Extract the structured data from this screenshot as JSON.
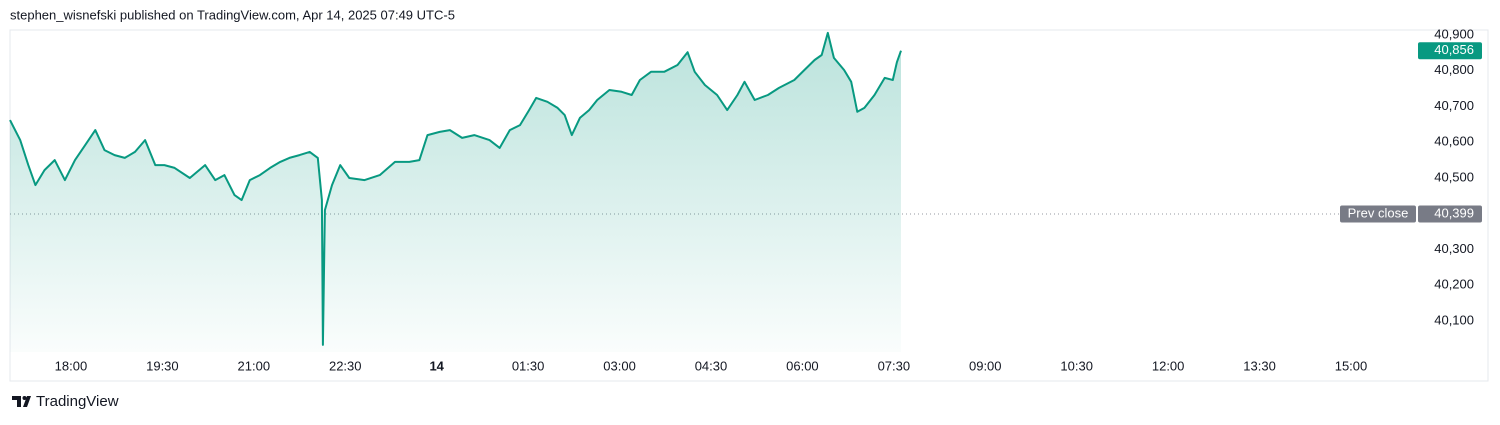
{
  "header": {
    "title": "stephen_wisnefski published on TradingView.com, Apr 14, 2025 07:49 UTC-5"
  },
  "chart_data": {
    "type": "area",
    "color": "#089981",
    "x": [
      "17:00",
      "17:10",
      "17:18",
      "17:25",
      "17:34",
      "17:44",
      "17:54",
      "18:04",
      "18:14",
      "18:24",
      "18:33",
      "18:43",
      "18:53",
      "19:03",
      "19:13",
      "19:23",
      "19:32",
      "19:42",
      "19:57",
      "20:12",
      "20:22",
      "20:31",
      "20:41",
      "20:48",
      "20:56",
      "21:06",
      "21:16",
      "21:26",
      "21:35",
      "21:45",
      "21:55",
      "22:03",
      "22:07",
      "22:08",
      "22:10",
      "22:17",
      "22:25",
      "22:34",
      "22:49",
      "23:04",
      "23:19",
      "23:33",
      "23:43",
      "23:51",
      "00:03",
      "00:13",
      "00:25",
      "00:37",
      "00:52",
      "01:02",
      "01:12",
      "01:22",
      "01:31",
      "01:38",
      "01:49",
      "01:59",
      "02:06",
      "02:13",
      "02:21",
      "02:30",
      "02:38",
      "02:50",
      "03:02",
      "03:12",
      "03:20",
      "03:31",
      "03:44",
      "03:57",
      "04:07",
      "04:14",
      "04:24",
      "04:36",
      "04:46",
      "04:56",
      "05:03",
      "05:13",
      "05:26",
      "05:37",
      "05:52",
      "06:02",
      "06:12",
      "06:19",
      "06:25",
      "06:31",
      "06:41",
      "06:48",
      "06:54",
      "07:01",
      "07:11",
      "07:21",
      "07:29",
      "07:33",
      "07:37"
    ],
    "values": [
      40662,
      40606,
      40536,
      40480,
      40522,
      40550,
      40494,
      40550,
      40592,
      40634,
      40578,
      40564,
      40556,
      40573,
      40606,
      40536,
      40536,
      40528,
      40500,
      40536,
      40494,
      40508,
      40452,
      40438,
      40494,
      40508,
      40528,
      40545,
      40556,
      40564,
      40573,
      40556,
      40438,
      40033,
      40410,
      40480,
      40536,
      40500,
      40494,
      40508,
      40545,
      40545,
      40550,
      40620,
      40629,
      40634,
      40612,
      40620,
      40606,
      40584,
      40634,
      40648,
      40690,
      40724,
      40713,
      40696,
      40676,
      40620,
      40668,
      40690,
      40718,
      40746,
      40741,
      40732,
      40774,
      40797,
      40797,
      40816,
      40852,
      40797,
      40760,
      40732,
      40690,
      40732,
      40769,
      40718,
      40732,
      40752,
      40774,
      40802,
      40830,
      40844,
      40906,
      40836,
      40802,
      40769,
      40685,
      40696,
      40732,
      40780,
      40774,
      40824,
      40856
    ],
    "xlim": [
      "17:00",
      "16:03"
    ],
    "xticks": [
      "18:00",
      "19:30",
      "21:00",
      "22:30",
      {
        "value": "00:00",
        "label": "14"
      },
      "01:30",
      "03:00",
      "04:30",
      "06:00",
      "07:30",
      "09:00",
      "10:30",
      "12:00",
      "13:30",
      "15:00"
    ],
    "ylim": [
      40013,
      40914
    ],
    "yticks": [
      {
        "value": 40100,
        "label": "40,100"
      },
      {
        "value": 40200,
        "label": "40,200"
      },
      {
        "value": 40300,
        "label": "40,300"
      },
      {
        "value": 40500,
        "label": "40,500"
      },
      {
        "value": 40600,
        "label": "40,600"
      },
      {
        "value": 40700,
        "label": "40,700"
      },
      {
        "value": 40800,
        "label": "40,800"
      },
      {
        "value": 40900,
        "label": "40,900"
      }
    ],
    "prev_close": {
      "label": "Prev close",
      "value": 40399,
      "value_label": "40,399"
    },
    "last_price": {
      "value": 40856,
      "value_label": "40,856"
    }
  },
  "footer": {
    "brand": "TradingView"
  }
}
